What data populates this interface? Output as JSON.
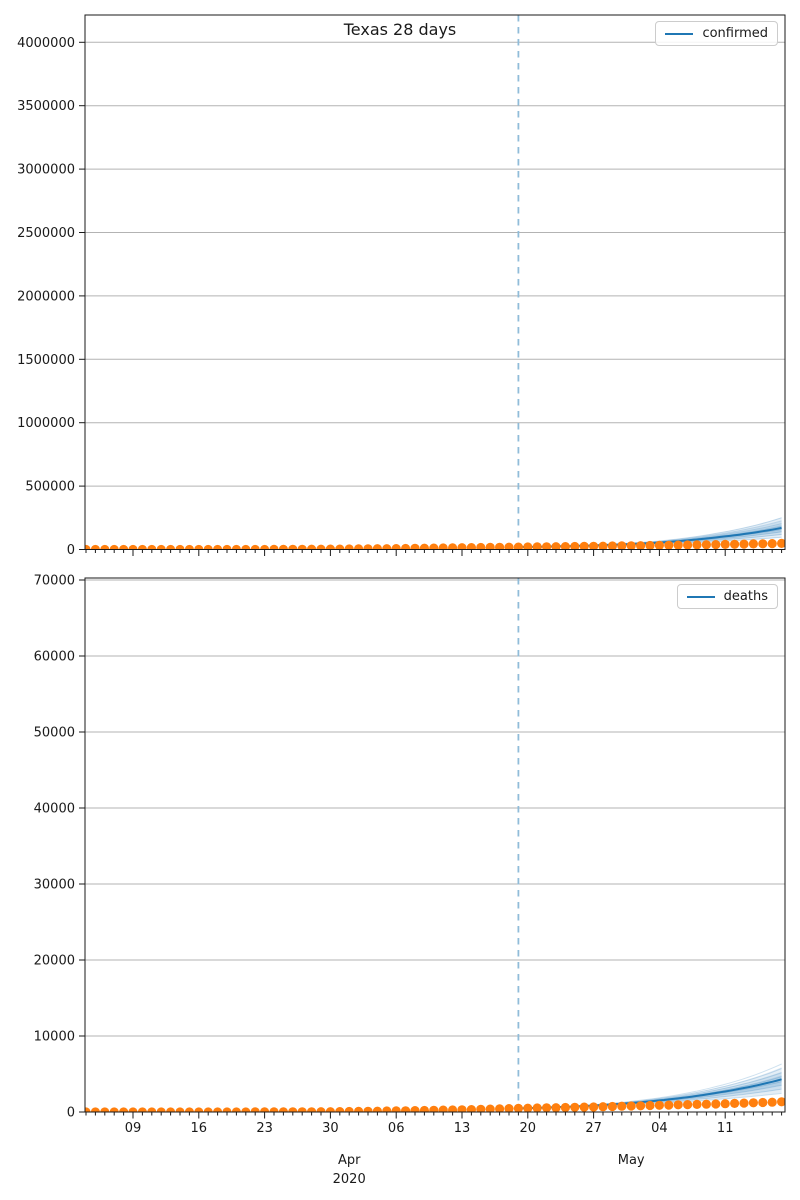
{
  "figure": {
    "title": "Texas 28 days"
  },
  "colors": {
    "forecast_line": "#1f77b4",
    "actual_points": "#ff7f0e",
    "confidence_band": "#1f77b4",
    "cutoff_line": "#90bcd9",
    "grid": "#b3b3b3",
    "spine": "#1a1a1a",
    "text": "#1a1a1a",
    "legend_border": "#cccccc"
  },
  "x_axis": {
    "start_date": "2020-03-04",
    "end_date": "2020-05-17",
    "days_total": 74,
    "cutoff_day": 46,
    "cutoff_date": "2020-04-19",
    "major_ticks": [
      {
        "day": 5,
        "label": "09"
      },
      {
        "day": 12,
        "label": "16"
      },
      {
        "day": 19,
        "label": "23"
      },
      {
        "day": 26,
        "label": "30"
      },
      {
        "day": 33,
        "label": "06"
      },
      {
        "day": 40,
        "label": "13"
      },
      {
        "day": 47,
        "label": "20"
      },
      {
        "day": 54,
        "label": "27"
      },
      {
        "day": 61,
        "label": "04"
      },
      {
        "day": 68,
        "label": "11"
      }
    ],
    "month_labels": [
      {
        "day": 28,
        "line1": "Apr",
        "line2": "2020"
      },
      {
        "day": 58,
        "line1": "May",
        "line2": ""
      }
    ]
  },
  "chart_data": [
    {
      "type": "line+scatter+band",
      "name": "confirmed",
      "title": "Texas 28 days",
      "legend_label": "confirmed",
      "legend_position": "upper right",
      "grid": "horizontal",
      "ylim": [
        0,
        4215000
      ],
      "yticks": [
        {
          "v": 0,
          "label": "0"
        },
        {
          "v": 500000,
          "label": "500000"
        },
        {
          "v": 1000000,
          "label": "1000000"
        },
        {
          "v": 1500000,
          "label": "1500000"
        },
        {
          "v": 2000000,
          "label": "2000000"
        },
        {
          "v": 2500000,
          "label": "2500000"
        },
        {
          "v": 3000000,
          "label": "3000000"
        },
        {
          "v": 3500000,
          "label": "3500000"
        },
        {
          "v": 4000000,
          "label": "4000000"
        }
      ],
      "actual": {
        "label": "reported confirmed (daily scatter)",
        "marker": "circle",
        "points": [
          [
            0,
            1
          ],
          [
            5,
            13
          ],
          [
            12,
            85
          ],
          [
            19,
            352
          ],
          [
            26,
            2877
          ],
          [
            33,
            7276
          ],
          [
            40,
            13906
          ],
          [
            46,
            18923
          ],
          [
            54,
            25297
          ],
          [
            61,
            32332
          ],
          [
            68,
            39869
          ],
          [
            74,
            47784
          ]
        ]
      },
      "forecast": {
        "label": "confirmed forecast median",
        "points": [
          [
            46,
            18923
          ],
          [
            53,
            30000
          ],
          [
            60,
            50000
          ],
          [
            67,
            95000
          ],
          [
            74,
            170000
          ]
        ],
        "band_end_low": 95000,
        "band_end_high": 255000
      }
    },
    {
      "type": "line+scatter+band",
      "name": "deaths",
      "title": "",
      "legend_label": "deaths",
      "legend_position": "upper right",
      "grid": "horizontal",
      "ylim": [
        0,
        70260
      ],
      "yticks": [
        {
          "v": 0,
          "label": "0"
        },
        {
          "v": 10000,
          "label": "10000"
        },
        {
          "v": 20000,
          "label": "20000"
        },
        {
          "v": 30000,
          "label": "30000"
        },
        {
          "v": 40000,
          "label": "40000"
        },
        {
          "v": 50000,
          "label": "50000"
        },
        {
          "v": 60000,
          "label": "60000"
        },
        {
          "v": 70000,
          "label": "70000"
        }
      ],
      "actual": {
        "label": "reported deaths (daily scatter)",
        "marker": "circle",
        "points": [
          [
            0,
            0
          ],
          [
            5,
            0
          ],
          [
            12,
            1
          ],
          [
            19,
            8
          ],
          [
            26,
            38
          ],
          [
            33,
            140
          ],
          [
            40,
            287
          ],
          [
            46,
            477
          ],
          [
            54,
            663
          ],
          [
            61,
            884
          ],
          [
            68,
            1088
          ],
          [
            74,
            1336
          ]
        ]
      },
      "forecast": {
        "label": "deaths forecast median",
        "points": [
          [
            46,
            477
          ],
          [
            53,
            780
          ],
          [
            60,
            1400
          ],
          [
            67,
            2500
          ],
          [
            74,
            4300
          ]
        ],
        "band_end_low": 2500,
        "band_end_high": 5900
      }
    }
  ]
}
